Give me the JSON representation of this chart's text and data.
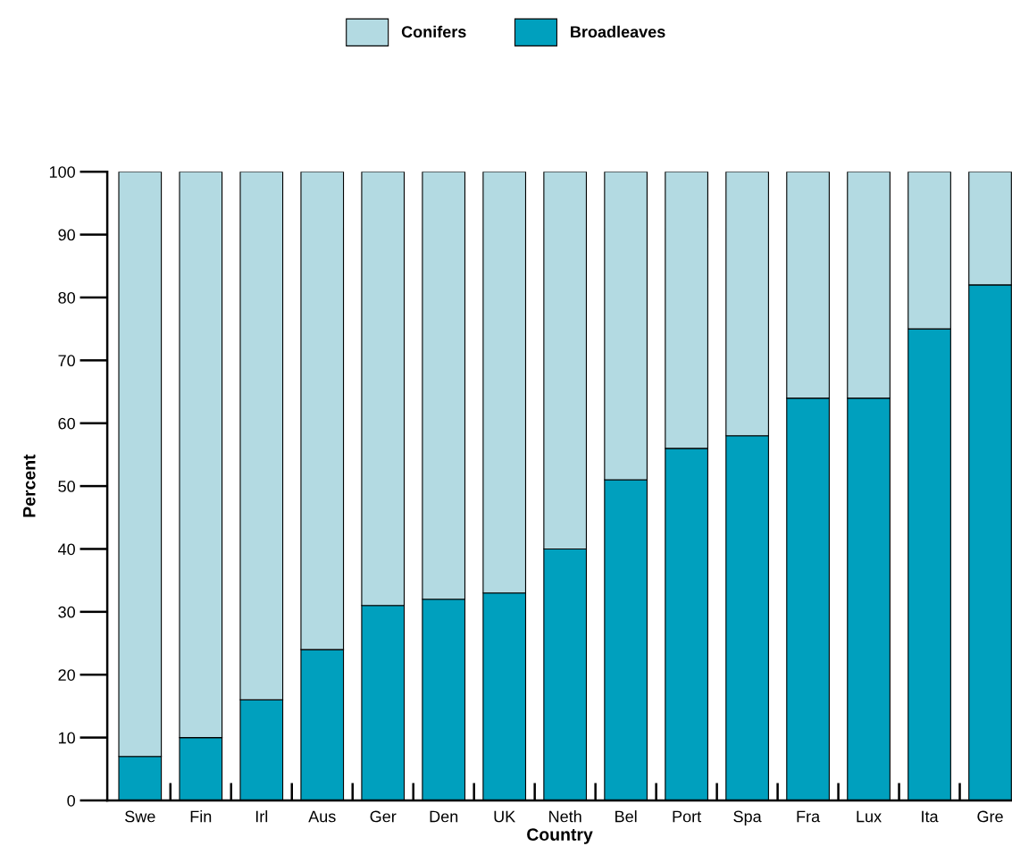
{
  "chart_data": {
    "type": "bar",
    "stacked": true,
    "xlabel": "Country",
    "ylabel": "Percent",
    "categories": [
      "Swe",
      "Fin",
      "Irl",
      "Aus",
      "Ger",
      "Den",
      "UK",
      "Neth",
      "Bel",
      "Port",
      "Spa",
      "Fra",
      "Lux",
      "Ita",
      "Gre"
    ],
    "series": [
      {
        "name": "Broadleaves",
        "color": "#00a0be",
        "values": [
          7,
          10,
          16,
          24,
          31,
          32,
          33,
          40,
          51,
          56,
          58,
          64,
          64,
          75,
          82
        ]
      },
      {
        "name": "Conifers",
        "color": "#b3dae2",
        "values": [
          93,
          90,
          84,
          76,
          69,
          68,
          67,
          60,
          49,
          44,
          42,
          36,
          36,
          25,
          18
        ]
      }
    ],
    "ylim": [
      0,
      100
    ],
    "yticks": [
      0,
      10,
      20,
      30,
      40,
      50,
      60,
      70,
      80,
      90,
      100
    ],
    "grid": false,
    "legend": "top"
  }
}
